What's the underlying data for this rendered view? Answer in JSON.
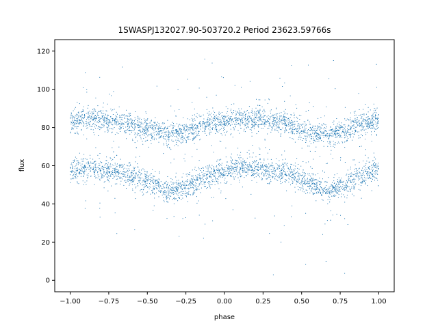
{
  "chart_data": {
    "type": "scatter",
    "title": "1SWASPJ132027.90-503720.2 Period 23623.59766s",
    "xlabel": "phase",
    "ylabel": "flux",
    "xlim": [
      -1.1,
      1.1
    ],
    "ylim": [
      -6,
      126
    ],
    "xticks": [
      -1.0,
      -0.75,
      -0.5,
      -0.25,
      0.0,
      0.25,
      0.5,
      0.75,
      1.0
    ],
    "xtick_labels": [
      "−1.00",
      "−0.75",
      "−0.50",
      "−0.25",
      "0.00",
      "0.25",
      "0.50",
      "0.75",
      "1.00"
    ],
    "yticks": [
      0,
      20,
      40,
      60,
      80,
      100,
      120
    ],
    "ytick_labels": [
      "0",
      "20",
      "40",
      "60",
      "80",
      "100",
      "120"
    ],
    "grid": false,
    "marker_color": "#1f77b4",
    "series": [
      {
        "x": [
          -1.0,
          -0.9,
          -0.8,
          -0.7,
          -0.6,
          -0.5,
          -0.4,
          -0.33,
          -0.25,
          -0.15,
          -0.05,
          0.05,
          0.15,
          0.25,
          0.35,
          0.45,
          0.55,
          0.67,
          0.75,
          0.85,
          0.95,
          1.0
        ],
        "y": [
          83,
          84,
          84,
          83,
          81,
          79,
          77,
          76,
          78,
          81,
          83,
          84,
          84,
          84,
          83,
          81,
          78,
          76,
          78,
          81,
          83,
          83
        ],
        "spread": 4
      },
      {
        "x": [
          -1.0,
          -0.9,
          -0.8,
          -0.7,
          -0.6,
          -0.5,
          -0.4,
          -0.33,
          -0.25,
          -0.15,
          -0.05,
          0.05,
          0.15,
          0.25,
          0.35,
          0.45,
          0.55,
          0.67,
          0.75,
          0.85,
          0.95,
          1.0
        ],
        "y": [
          57,
          58,
          58,
          57,
          55,
          52,
          48,
          46,
          49,
          53,
          56,
          58,
          59,
          58,
          57,
          55,
          51,
          46,
          49,
          53,
          57,
          58
        ],
        "spread": 4
      }
    ]
  }
}
